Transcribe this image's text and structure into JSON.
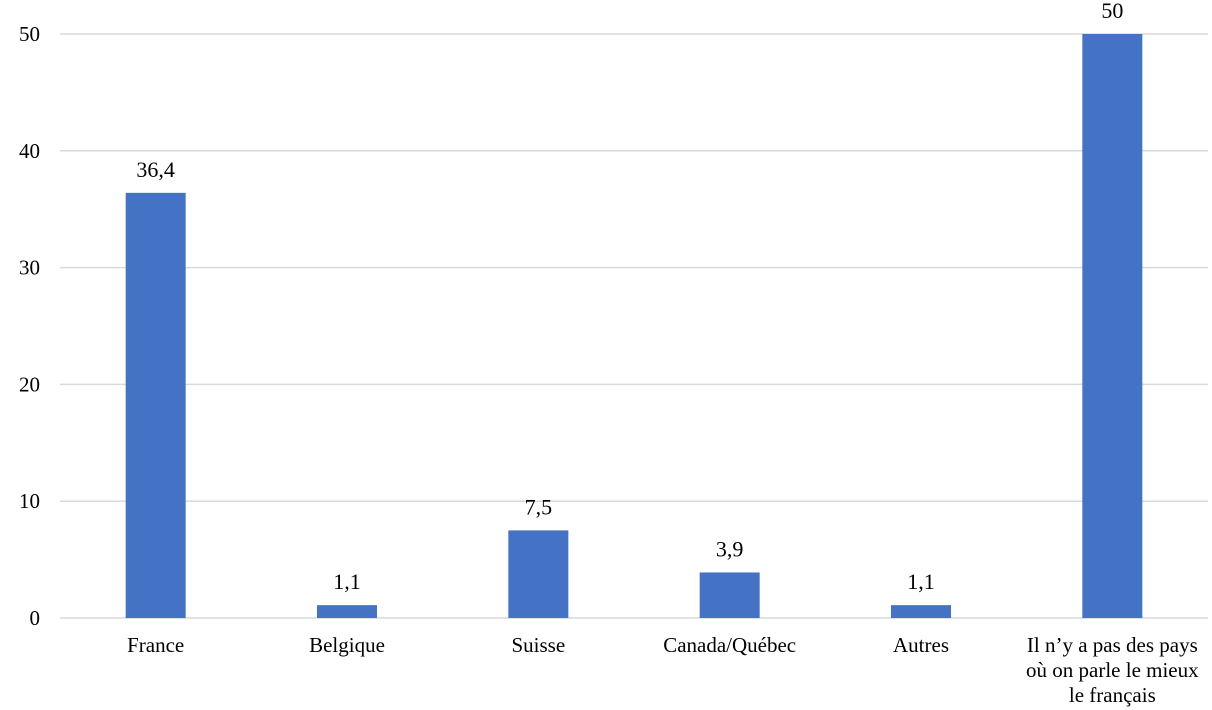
{
  "chart_data": {
    "type": "bar",
    "categories": [
      [
        "France"
      ],
      [
        "Belgique"
      ],
      [
        "Suisse"
      ],
      [
        "Canada/Québec"
      ],
      [
        "Autres"
      ],
      [
        "Il n’y a pas des pays",
        "où on parle le mieux",
        "le français"
      ]
    ],
    "values": [
      36.4,
      1.1,
      7.5,
      3.9,
      1.1,
      50
    ],
    "data_labels": [
      "36,4",
      "1,1",
      "7,5",
      "3,9",
      "1,1",
      "50"
    ],
    "ylim": [
      0,
      50
    ],
    "yticks": [
      0,
      10,
      20,
      30,
      40,
      50
    ],
    "grid": true,
    "legend": "none",
    "bar_color": "#4472c4"
  }
}
